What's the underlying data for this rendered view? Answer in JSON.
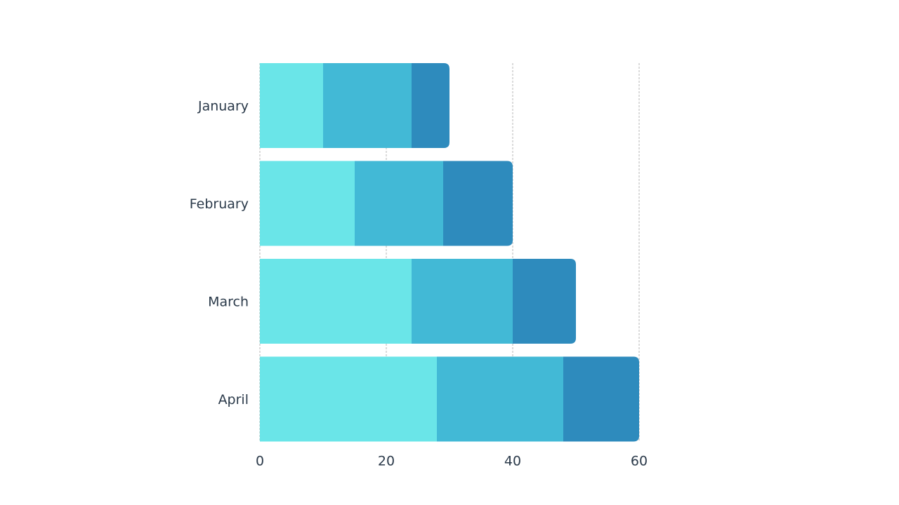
{
  "chart_data": {
    "type": "bar",
    "orientation": "horizontal",
    "stacked": true,
    "categories": [
      "January",
      "February",
      "March",
      "April"
    ],
    "series": [
      {
        "values": [
          10,
          15,
          24,
          28
        ],
        "color": "#6ae5e8"
      },
      {
        "values": [
          14,
          14,
          16,
          20
        ],
        "color": "#42b9d6"
      },
      {
        "values": [
          6,
          11,
          10,
          12
        ],
        "color": "#2e8bbd"
      }
    ],
    "xlim": [
      0,
      60
    ],
    "xticks": [
      "0",
      "20",
      "40",
      "60"
    ],
    "grid": true
  }
}
